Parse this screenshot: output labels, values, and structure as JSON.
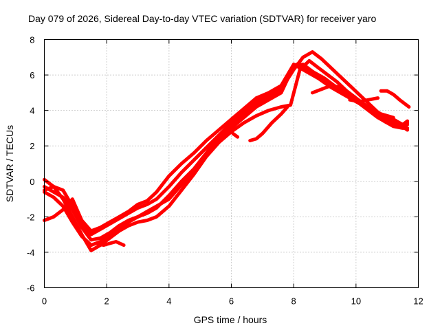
{
  "chart_data": {
    "type": "scatter",
    "title": "Day 079 of 2026, Sidereal Day-to-day VTEC variation (SDTVAR) for receiver yaro",
    "xlabel": "GPS time / hours",
    "ylabel": "SDTVAR / TECUs",
    "xlim": [
      0,
      12
    ],
    "ylim": [
      -6,
      8
    ],
    "x_ticks": [
      0,
      2,
      4,
      6,
      8,
      10,
      12
    ],
    "y_ticks": [
      -6,
      -4,
      -2,
      0,
      2,
      4,
      6,
      8
    ],
    "grid": true,
    "marker": "+",
    "color": "#ff0000",
    "series": [
      {
        "name": "s1",
        "x": [
          0.0,
          0.3,
          0.6,
          0.9,
          1.2,
          1.5,
          1.8,
          2.1,
          2.4,
          2.7,
          3.0,
          3.3,
          3.6,
          4.0,
          4.4,
          4.8,
          5.2,
          5.6,
          6.0,
          6.4,
          6.8,
          7.2,
          7.6,
          7.9,
          8.1,
          8.4,
          8.7,
          9.0,
          9.3,
          9.6,
          9.9,
          10.2,
          10.5,
          10.8,
          11.1,
          11.4,
          11.65
        ],
        "y": [
          -2.2,
          -2.0,
          -1.6,
          -1.0,
          -2.2,
          -2.8,
          -2.6,
          -2.3,
          -2.0,
          -1.7,
          -1.3,
          -1.1,
          -0.6,
          0.3,
          1.0,
          1.6,
          2.3,
          2.9,
          3.5,
          4.1,
          4.7,
          5.0,
          5.4,
          6.1,
          6.6,
          6.4,
          6.1,
          5.8,
          5.4,
          5.0,
          4.6,
          4.3,
          3.9,
          3.6,
          3.4,
          3.2,
          2.9
        ]
      },
      {
        "name": "s2",
        "x": [
          0.0,
          0.3,
          0.6,
          0.9,
          1.2,
          1.5,
          1.8,
          2.1,
          2.4,
          2.7,
          3.0,
          3.3,
          3.6,
          4.0,
          4.4,
          4.8,
          5.2,
          5.6,
          6.0,
          6.4,
          6.8,
          7.2,
          7.6,
          8.0,
          8.3,
          8.6,
          8.9,
          9.2,
          9.5,
          9.8,
          10.1,
          10.4,
          10.7,
          11.0,
          11.3,
          11.65
        ],
        "y": [
          -0.6,
          -0.9,
          -1.4,
          -2.3,
          -3.1,
          -3.6,
          -3.4,
          -3.0,
          -2.6,
          -2.3,
          -2.0,
          -1.8,
          -1.5,
          -0.8,
          0.0,
          0.7,
          1.6,
          2.5,
          3.2,
          3.8,
          4.4,
          4.8,
          5.2,
          6.3,
          7.0,
          7.3,
          6.9,
          6.4,
          5.9,
          5.4,
          4.9,
          4.4,
          3.9,
          3.4,
          3.1,
          3.3
        ]
      },
      {
        "name": "s3",
        "x": [
          0.0,
          0.3,
          0.6,
          0.9,
          1.2,
          1.5,
          1.8,
          2.1,
          2.4,
          2.7,
          3.0,
          3.3,
          3.6,
          4.0,
          4.4,
          4.8,
          5.2,
          5.6,
          6.0,
          6.4,
          6.8,
          7.2,
          7.6,
          7.9,
          8.2,
          8.5,
          8.8,
          9.1,
          9.4,
          9.7,
          10.0,
          10.3,
          10.6,
          10.9,
          11.2,
          11.5,
          11.65
        ],
        "y": [
          0.1,
          -0.3,
          -1.0,
          -2.0,
          -3.0,
          -3.9,
          -3.6,
          -3.2,
          -2.8,
          -2.5,
          -2.3,
          -2.2,
          -2.0,
          -1.4,
          -0.5,
          0.4,
          1.4,
          2.2,
          2.8,
          3.3,
          3.7,
          4.0,
          4.2,
          4.3,
          6.3,
          6.8,
          6.4,
          6.0,
          5.6,
          5.1,
          4.7,
          4.3,
          3.8,
          3.4,
          3.1,
          3.0,
          3.0
        ]
      },
      {
        "name": "s4",
        "x": [
          0.0,
          0.3,
          0.6,
          0.9,
          1.2,
          1.5,
          1.8,
          2.1,
          2.4,
          2.7,
          3.0,
          3.3,
          3.6,
          4.0,
          4.4,
          4.8,
          5.2,
          5.6,
          6.0,
          6.4,
          6.8,
          7.2,
          7.6,
          8.0,
          8.3,
          8.6,
          8.9,
          9.2,
          9.5,
          9.8,
          10.1,
          10.4,
          10.7,
          11.0,
          11.3,
          11.65
        ],
        "y": [
          -0.3,
          -0.6,
          -0.9,
          -1.6,
          -2.6,
          -3.3,
          -3.2,
          -2.9,
          -2.5,
          -2.2,
          -2.0,
          -1.7,
          -1.4,
          -1.0,
          -0.2,
          0.6,
          1.5,
          2.3,
          3.0,
          3.6,
          4.2,
          4.6,
          5.0,
          6.5,
          6.6,
          6.2,
          5.8,
          5.5,
          5.2,
          4.8,
          4.4,
          4.0,
          3.6,
          3.3,
          3.1,
          3.2
        ]
      },
      {
        "name": "s5",
        "x": [
          0.0,
          0.3,
          0.6,
          0.9,
          1.2,
          1.5,
          1.8,
          2.1,
          2.4,
          2.7,
          3.0,
          3.3,
          3.6,
          4.0,
          4.4,
          4.8,
          5.2,
          5.6,
          6.0,
          6.4,
          6.8,
          7.2,
          7.6,
          8.0,
          8.4,
          8.8,
          9.2,
          9.6,
          10.0,
          10.3,
          10.6,
          10.9,
          11.2,
          11.5,
          11.65
        ],
        "y": [
          -0.5,
          -0.3,
          -0.5,
          -1.4,
          -2.4,
          -3.0,
          -2.7,
          -2.4,
          -2.1,
          -1.8,
          -1.5,
          -1.3,
          -1.0,
          -0.3,
          0.5,
          1.2,
          1.9,
          2.6,
          3.3,
          3.9,
          4.5,
          4.9,
          5.4,
          6.6,
          6.2,
          5.8,
          5.3,
          4.9,
          4.5,
          4.3,
          3.9,
          3.6,
          3.5,
          3.2,
          3.4
        ]
      },
      {
        "name": "seg1",
        "x": [
          1.7,
          1.9,
          2.1,
          2.3,
          2.55
        ],
        "y": [
          -3.5,
          -3.6,
          -3.5,
          -3.4,
          -3.6
        ]
      },
      {
        "name": "seg2",
        "x": [
          6.05,
          6.2
        ],
        "y": [
          2.7,
          2.5
        ]
      },
      {
        "name": "seg3",
        "x": [
          6.6,
          6.8,
          7.0,
          7.3,
          7.6,
          7.8
        ],
        "y": [
          2.3,
          2.4,
          2.7,
          3.3,
          3.8,
          4.2
        ]
      },
      {
        "name": "seg4",
        "x": [
          8.6,
          8.9,
          9.2,
          9.5,
          9.7
        ],
        "y": [
          5.0,
          5.2,
          5.4,
          5.3,
          5.1
        ]
      },
      {
        "name": "seg5",
        "x": [
          9.8,
          10.1,
          10.4,
          10.7
        ],
        "y": [
          4.6,
          4.5,
          4.6,
          4.7
        ]
      },
      {
        "name": "seg6",
        "x": [
          10.8,
          11.0,
          11.2,
          11.4,
          11.7
        ],
        "y": [
          5.1,
          5.1,
          4.9,
          4.6,
          4.2
        ]
      },
      {
        "name": "seg7",
        "x": [
          10.6,
          10.8,
          11.0,
          11.2
        ],
        "y": [
          4.0,
          3.8,
          3.7,
          3.6
        ]
      }
    ]
  }
}
